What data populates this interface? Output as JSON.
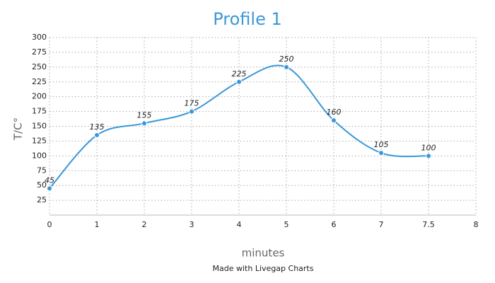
{
  "chart_data": {
    "type": "line",
    "title": "Profile 1",
    "x_label": "minutes",
    "y_label": "T/C°",
    "footer": "Made with Livegap Charts",
    "categories": [
      "0",
      "1",
      "2",
      "3",
      "4",
      "5",
      "6",
      "7",
      "7.5",
      "8"
    ],
    "values": [
      45,
      135,
      155,
      175,
      225,
      250,
      160,
      105,
      100,
      null
    ],
    "color": "#3a98d8",
    "smooth": true,
    "data_labels": true,
    "ylim": [
      0,
      300
    ],
    "yticks": [
      25,
      50,
      75,
      100,
      125,
      150,
      175,
      200,
      225,
      250,
      275,
      300
    ],
    "grid": true
  }
}
